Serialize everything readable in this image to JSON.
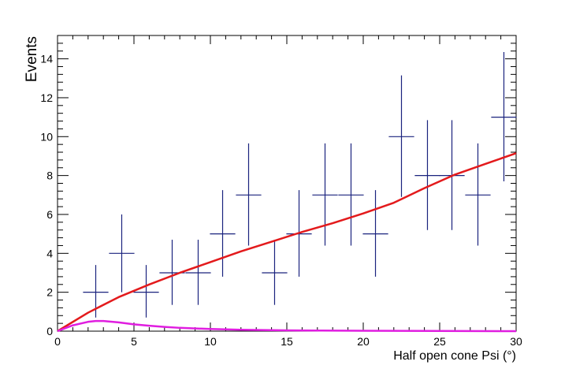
{
  "chart_data": {
    "type": "scatter",
    "title": "",
    "xlabel": "Half open cone Psi (°)",
    "ylabel": "Events",
    "xlim": [
      0,
      30
    ],
    "ylim": [
      0,
      15.2
    ],
    "x_ticks": [
      0,
      5,
      10,
      15,
      20,
      25,
      30
    ],
    "y_ticks": [
      0,
      2,
      4,
      6,
      8,
      10,
      12,
      14
    ],
    "grid": false,
    "colors": {
      "data": "#1a237e",
      "fit": "#e31a1c",
      "signal": "#e01ee0"
    },
    "series": [
      {
        "type": "errorbar",
        "x": [
          2.5,
          4.2,
          5.8,
          7.5,
          9.2,
          10.8,
          12.5,
          14.2,
          15.8,
          17.5,
          19.2,
          20.8,
          22.5,
          24.2,
          25.8,
          27.5,
          29.2
        ],
        "xerr": 0.83,
        "y": [
          2,
          4,
          2,
          3,
          3,
          5,
          7,
          3,
          5,
          7,
          7,
          5,
          10,
          8,
          8,
          7,
          11
        ],
        "yerr_low": [
          1.3,
          2.0,
          1.3,
          1.65,
          1.65,
          2.2,
          2.6,
          1.65,
          2.2,
          2.6,
          2.6,
          2.2,
          3.1,
          2.8,
          2.8,
          2.6,
          3.3
        ],
        "yerr_high": [
          1.4,
          2.0,
          1.4,
          1.7,
          1.7,
          2.25,
          2.65,
          1.7,
          2.25,
          2.65,
          2.65,
          2.25,
          3.15,
          2.85,
          2.85,
          2.65,
          3.35
        ]
      },
      {
        "type": "line",
        "x": [
          0,
          2,
          4,
          6,
          8,
          10,
          12,
          14,
          16,
          18,
          20,
          22,
          24,
          26,
          28,
          30
        ],
        "y": [
          0,
          0.95,
          1.75,
          2.4,
          3.0,
          3.55,
          4.1,
          4.6,
          5.1,
          5.55,
          6.05,
          6.6,
          7.35,
          8.05,
          8.6,
          9.15
        ]
      },
      {
        "type": "line",
        "x": [
          0,
          1,
          2,
          2.5,
          3,
          4,
          5,
          6,
          7,
          8,
          10,
          12,
          15,
          20,
          25,
          30
        ],
        "y": [
          0,
          0.3,
          0.48,
          0.52,
          0.52,
          0.45,
          0.35,
          0.28,
          0.22,
          0.17,
          0.11,
          0.07,
          0.04,
          0.02,
          0.01,
          0.0
        ]
      }
    ]
  }
}
